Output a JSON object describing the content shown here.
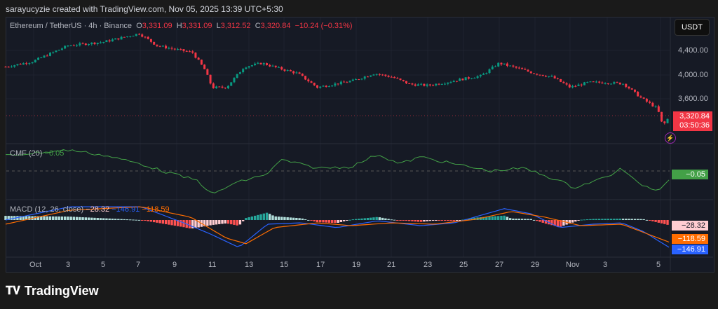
{
  "banner": "sarayucyzie created with TradingView.com, Nov 05, 2025 13:39 UTC+5:30",
  "legend": {
    "symbol": "Ethereum / TetherUS · 4h · Binance",
    "o_label": "O",
    "o": "3,331.09",
    "h_label": "H",
    "h": "3,331.09",
    "l_label": "L",
    "l": "3,312.52",
    "c_label": "C",
    "c": "3,320.84",
    "change": "−10.24 (−0.31%)"
  },
  "currency": "USDT",
  "price_axis": [
    "4,400.00",
    "4,000.00",
    "3,600.00"
  ],
  "last_price": "3,320.84",
  "countdown": "03:50:36",
  "cmf": {
    "label": "CMF (20)",
    "value": "−0.05",
    "tag": "−0.05"
  },
  "macd": {
    "label": "MACD (12, 26, close)",
    "hist": "−28.32",
    "macd": "−146.91",
    "signal": "−118.59"
  },
  "x_axis": [
    "Oct",
    "3",
    "5",
    "7",
    "9",
    "11",
    "13",
    "15",
    "17",
    "19",
    "21",
    "23",
    "25",
    "27",
    "29",
    "Nov",
    "3",
    "5"
  ],
  "logo": "TradingView",
  "colors": {
    "up": "#089981",
    "down": "#f23645",
    "cmf": "#43a047",
    "macd": "#2962ff",
    "signal": "#ff6d00"
  },
  "chart_data": [
    {
      "type": "candlestick",
      "title": "Ethereum / TetherUS · 4h · Binance",
      "yticks": [
        4400,
        4000,
        3600
      ],
      "price_path": [
        [
          0,
          4130
        ],
        [
          1.5,
          4215
        ],
        [
          3.5,
          4480
        ],
        [
          5.5,
          4540
        ],
        [
          7.5,
          4680
        ],
        [
          8.5,
          4480
        ],
        [
          9.5,
          4420
        ],
        [
          10.5,
          4365
        ],
        [
          11.2,
          4075
        ],
        [
          11.6,
          3785
        ],
        [
          12.4,
          3790
        ],
        [
          13.4,
          4130
        ],
        [
          14.4,
          4190
        ],
        [
          15.4,
          4100
        ],
        [
          16.4,
          4020
        ],
        [
          17.5,
          3790
        ],
        [
          19.5,
          3900
        ],
        [
          20.7,
          4020
        ],
        [
          21.7,
          3960
        ],
        [
          22.7,
          3840
        ],
        [
          23.7,
          3820
        ],
        [
          24.7,
          3870
        ],
        [
          25.7,
          3930
        ],
        [
          26.7,
          3980
        ],
        [
          27.7,
          4190
        ],
        [
          28.7,
          4110
        ],
        [
          29.7,
          4020
        ],
        [
          30.7,
          3960
        ],
        [
          31.7,
          3790
        ],
        [
          32.7,
          3870
        ],
        [
          33.7,
          3870
        ],
        [
          34.7,
          3850
        ],
        [
          35.7,
          3610
        ],
        [
          36.6,
          3440
        ],
        [
          36.9,
          3150
        ],
        [
          37.3,
          3320.84
        ]
      ]
    },
    {
      "type": "line",
      "title": "CMF (20)",
      "reference": 0,
      "points": [
        [
          0,
          0.11
        ],
        [
          3.6,
          0.15
        ],
        [
          5.6,
          0.11
        ],
        [
          7.6,
          0.05
        ],
        [
          8.8,
          0
        ],
        [
          10.8,
          -0.07
        ],
        [
          11.6,
          -0.17
        ],
        [
          12.8,
          -0.09
        ],
        [
          14.7,
          -0.02
        ],
        [
          15.5,
          0.08
        ],
        [
          17.5,
          0.02
        ],
        [
          19.4,
          0.03
        ],
        [
          20.9,
          0.12
        ],
        [
          22.1,
          0.05
        ],
        [
          23.3,
          0.1
        ],
        [
          25.2,
          0.05
        ],
        [
          27.2,
          0
        ],
        [
          29.1,
          0.02
        ],
        [
          31.1,
          -0.07
        ],
        [
          31.9,
          -0.12
        ],
        [
          33.8,
          -0.04
        ],
        [
          34.6,
          0.02
        ],
        [
          35.4,
          -0.08
        ],
        [
          36.6,
          -0.14
        ],
        [
          37.3,
          -0.05
        ]
      ]
    },
    {
      "type": "line+bar",
      "title": "MACD (12, 26, close)",
      "macd": [
        [
          0,
          0
        ],
        [
          3.6,
          70
        ],
        [
          7.6,
          70
        ],
        [
          10,
          -15
        ],
        [
          11.6,
          -78
        ],
        [
          13.1,
          -145
        ],
        [
          14.7,
          -22
        ],
        [
          16.6,
          -15
        ],
        [
          18.6,
          -40
        ],
        [
          20.9,
          -4
        ],
        [
          23.3,
          -30
        ],
        [
          25.2,
          -15
        ],
        [
          28,
          60
        ],
        [
          29.5,
          33
        ],
        [
          31.1,
          -40
        ],
        [
          33,
          -22
        ],
        [
          34.6,
          -15
        ],
        [
          35.8,
          -60
        ],
        [
          37.3,
          -146.91
        ]
      ],
      "signal": [
        [
          0,
          -22
        ],
        [
          3.6,
          52
        ],
        [
          7.6,
          70
        ],
        [
          10.4,
          15
        ],
        [
          12.4,
          -96
        ],
        [
          13.5,
          -125
        ],
        [
          15.1,
          -40
        ],
        [
          17.5,
          -15
        ],
        [
          19.4,
          -30
        ],
        [
          21.7,
          -15
        ],
        [
          24.1,
          -22
        ],
        [
          26.4,
          4
        ],
        [
          28.4,
          45
        ],
        [
          30.3,
          15
        ],
        [
          32.3,
          -30
        ],
        [
          34.6,
          -22
        ],
        [
          37.3,
          -118.59
        ]
      ]
    }
  ]
}
